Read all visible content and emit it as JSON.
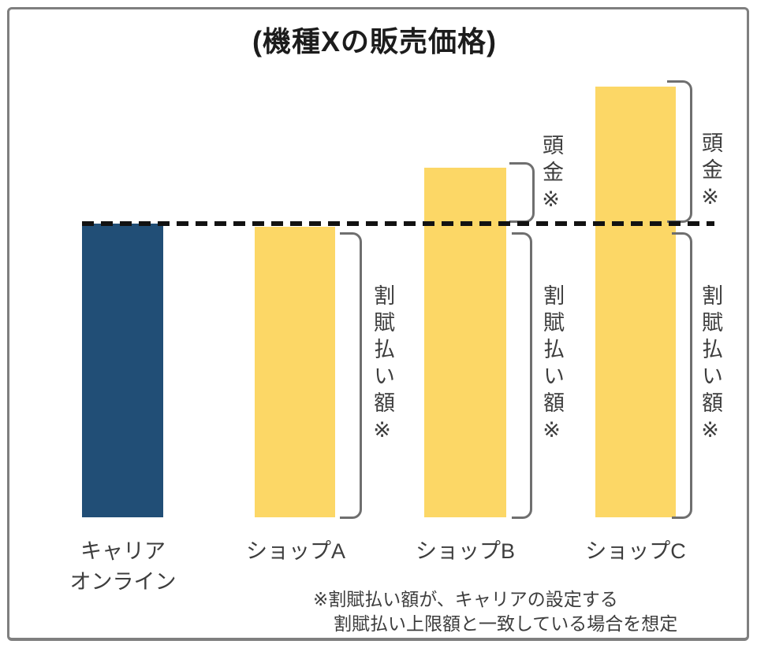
{
  "title": "(機種Xの販売価格)",
  "colors": {
    "bar_carrier": "#214E76",
    "bar_shop": "#FCD766",
    "dashed_line": "#121212",
    "bracket": "#6F6F6F",
    "frame_border": "#7F7F7F",
    "text": "#3D3D3D"
  },
  "categories": {
    "carrier_line1": "キャリア",
    "carrier_line2": "オンライン",
    "shop_a": "ショップA",
    "shop_b": "ショップB",
    "shop_c": "ショップC"
  },
  "annotations": {
    "downpayment_b": "頭金※",
    "downpayment_c": "頭金※",
    "installment_a": "割賦払い額※",
    "installment_b": "割賦払い額※",
    "installment_c": "割賦払い額※"
  },
  "footnote": {
    "line1": "※割賦払い額が、キャリアの設定する",
    "line2": "割賦払い上限額と一致している場合を想定"
  },
  "chart_data": {
    "type": "bar",
    "title": "(機種Xの販売価格)",
    "categories": [
      "キャリアオンライン",
      "ショップA",
      "ショップB",
      "ショップC"
    ],
    "series": [
      {
        "name": "割賦払い額※",
        "values": [
          100,
          100,
          100,
          100
        ]
      },
      {
        "name": "頭金※",
        "values": [
          0,
          0,
          20,
          47
        ]
      }
    ],
    "value_basis": "relative scale: キャリアオンライン販売価格(=割賦払い額)を100とした概念図",
    "reference_line": {
      "style": "dashed",
      "level": 100
    },
    "bar_colors": [
      "#214E76",
      "#FCD766",
      "#FCD766",
      "#FCD766"
    ],
    "legend_position": "none",
    "grid": false,
    "axes_labeled": false,
    "annotation": "※割賦払い額が、キャリアの設定する割賦払い上限額と一致している場合を想定"
  }
}
